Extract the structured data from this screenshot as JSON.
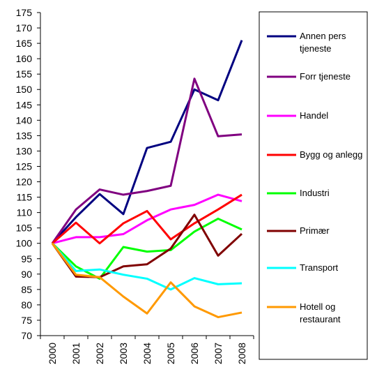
{
  "chart_data": {
    "type": "line",
    "categories": [
      "2000",
      "2001",
      "2002",
      "2003",
      "2004",
      "2005",
      "2006",
      "2007",
      "2008"
    ],
    "series": [
      {
        "name": "Annen pers tjeneste",
        "color": "#000080",
        "values": [
          100,
          108.5,
          116,
          109.5,
          131,
          133,
          150,
          146.5,
          166
        ]
      },
      {
        "name": "Forr tjeneste",
        "color": "#800080",
        "values": [
          100,
          111,
          117.5,
          115.8,
          117,
          118.7,
          153.5,
          134.8,
          135.4
        ]
      },
      {
        "name": "Handel",
        "color": "#ff00ff",
        "values": [
          100,
          102,
          102,
          103,
          107.5,
          111,
          112.5,
          115.8,
          113.7
        ]
      },
      {
        "name": "Bygg og anlegg",
        "color": "#ff0000",
        "values": [
          100,
          106.7,
          100,
          106.5,
          110.5,
          101.3,
          106.5,
          111,
          115.8
        ]
      },
      {
        "name": "Industri",
        "color": "#00ff00",
        "values": [
          100,
          92.5,
          88.5,
          98.8,
          97.3,
          97.8,
          103.8,
          108,
          104.5
        ]
      },
      {
        "name": "Primær",
        "color": "#800000",
        "values": [
          100,
          89.2,
          89,
          92.5,
          93.2,
          98.3,
          109.3,
          96,
          103.1
        ]
      },
      {
        "name": "Transport",
        "color": "#00ffff",
        "values": [
          100,
          91,
          91.5,
          89.8,
          88.5,
          85,
          88.7,
          86.7,
          87
        ]
      },
      {
        "name": "Hotell og restaurant",
        "color": "#ff9900",
        "values": [
          100,
          89.8,
          89,
          82.7,
          77.2,
          87.3,
          79.5,
          76,
          77.5
        ]
      }
    ],
    "ylim": [
      70,
      175
    ],
    "yticks": [
      70,
      75,
      80,
      85,
      90,
      95,
      100,
      105,
      110,
      115,
      120,
      125,
      130,
      135,
      140,
      145,
      150,
      155,
      160,
      165,
      170,
      175
    ],
    "grid": false,
    "legend": "right"
  }
}
